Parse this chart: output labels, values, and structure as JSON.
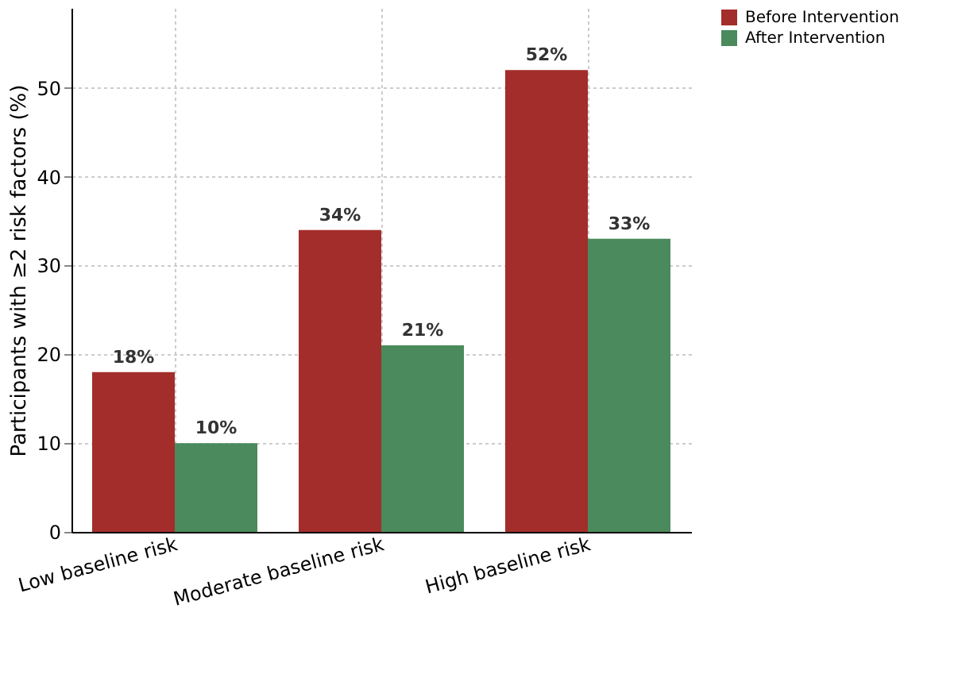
{
  "chart_data": {
    "type": "bar",
    "ylabel": "Participants with ≥2 risk factors (%)",
    "categories": [
      "Low baseline risk",
      "Moderate baseline risk",
      "High baseline risk"
    ],
    "series": [
      {
        "name": "Before Intervention",
        "color": "#a32d2a",
        "values": [
          18,
          34,
          52
        ],
        "value_labels": [
          "18%",
          "34%",
          "52%"
        ]
      },
      {
        "name": "After Intervention",
        "color": "#4a8a5c",
        "values": [
          10,
          21,
          33
        ],
        "value_labels": [
          "10%",
          "21%",
          "33%"
        ]
      }
    ],
    "ylim": [
      0,
      59
    ],
    "yticks": [
      0,
      10,
      20,
      30,
      40,
      50
    ],
    "grid": true,
    "legend": "right"
  }
}
